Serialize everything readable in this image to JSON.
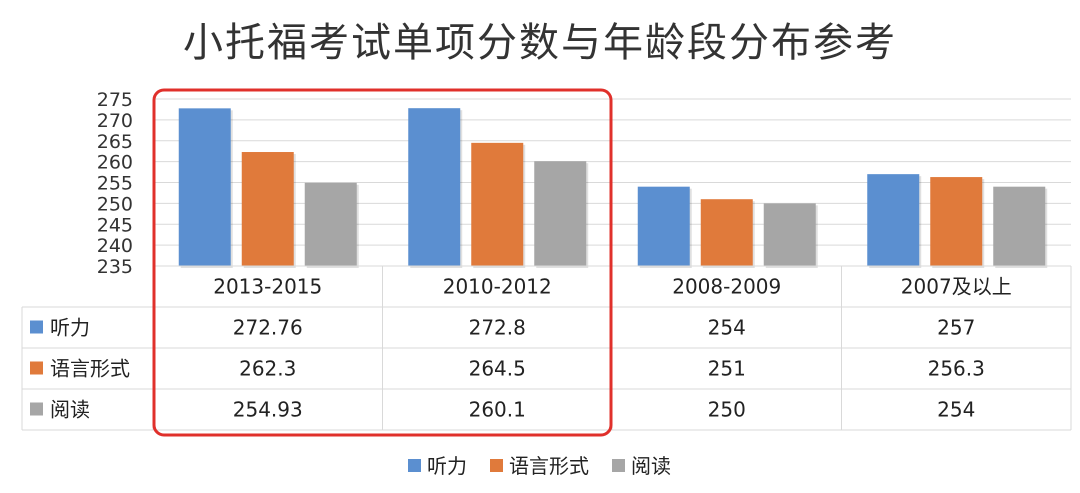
{
  "chart_data": {
    "type": "bar",
    "title": "小托福考试单项分数与年龄段分布参考",
    "categories": [
      "2013-2015",
      "2010-2012",
      "2008-2009",
      "2007及以上"
    ],
    "series": [
      {
        "name": "听力",
        "color": "#5b8fd0",
        "values": [
          272.76,
          272.8,
          254,
          257
        ],
        "labels": [
          "272.76",
          "272.8",
          "254",
          "257"
        ]
      },
      {
        "name": "语言形式",
        "color": "#e07a3b",
        "values": [
          262.3,
          264.5,
          251,
          256.3
        ],
        "labels": [
          "262.3",
          "264.5",
          "251",
          "256.3"
        ]
      },
      {
        "name": "阅读",
        "color": "#a6a6a6",
        "values": [
          254.93,
          260.1,
          250,
          254
        ],
        "labels": [
          "254.93",
          "260.1",
          "250",
          "254"
        ]
      }
    ],
    "yticks": [
      "235",
      "240",
      "245",
      "250",
      "255",
      "260",
      "265",
      "270",
      "275"
    ],
    "ylim": [
      235,
      275
    ],
    "grid": true,
    "legend_position": "bottom",
    "data_table": true,
    "highlight": {
      "categories": [
        "2013-2015",
        "2010-2012"
      ],
      "color": "#e0302b"
    }
  }
}
